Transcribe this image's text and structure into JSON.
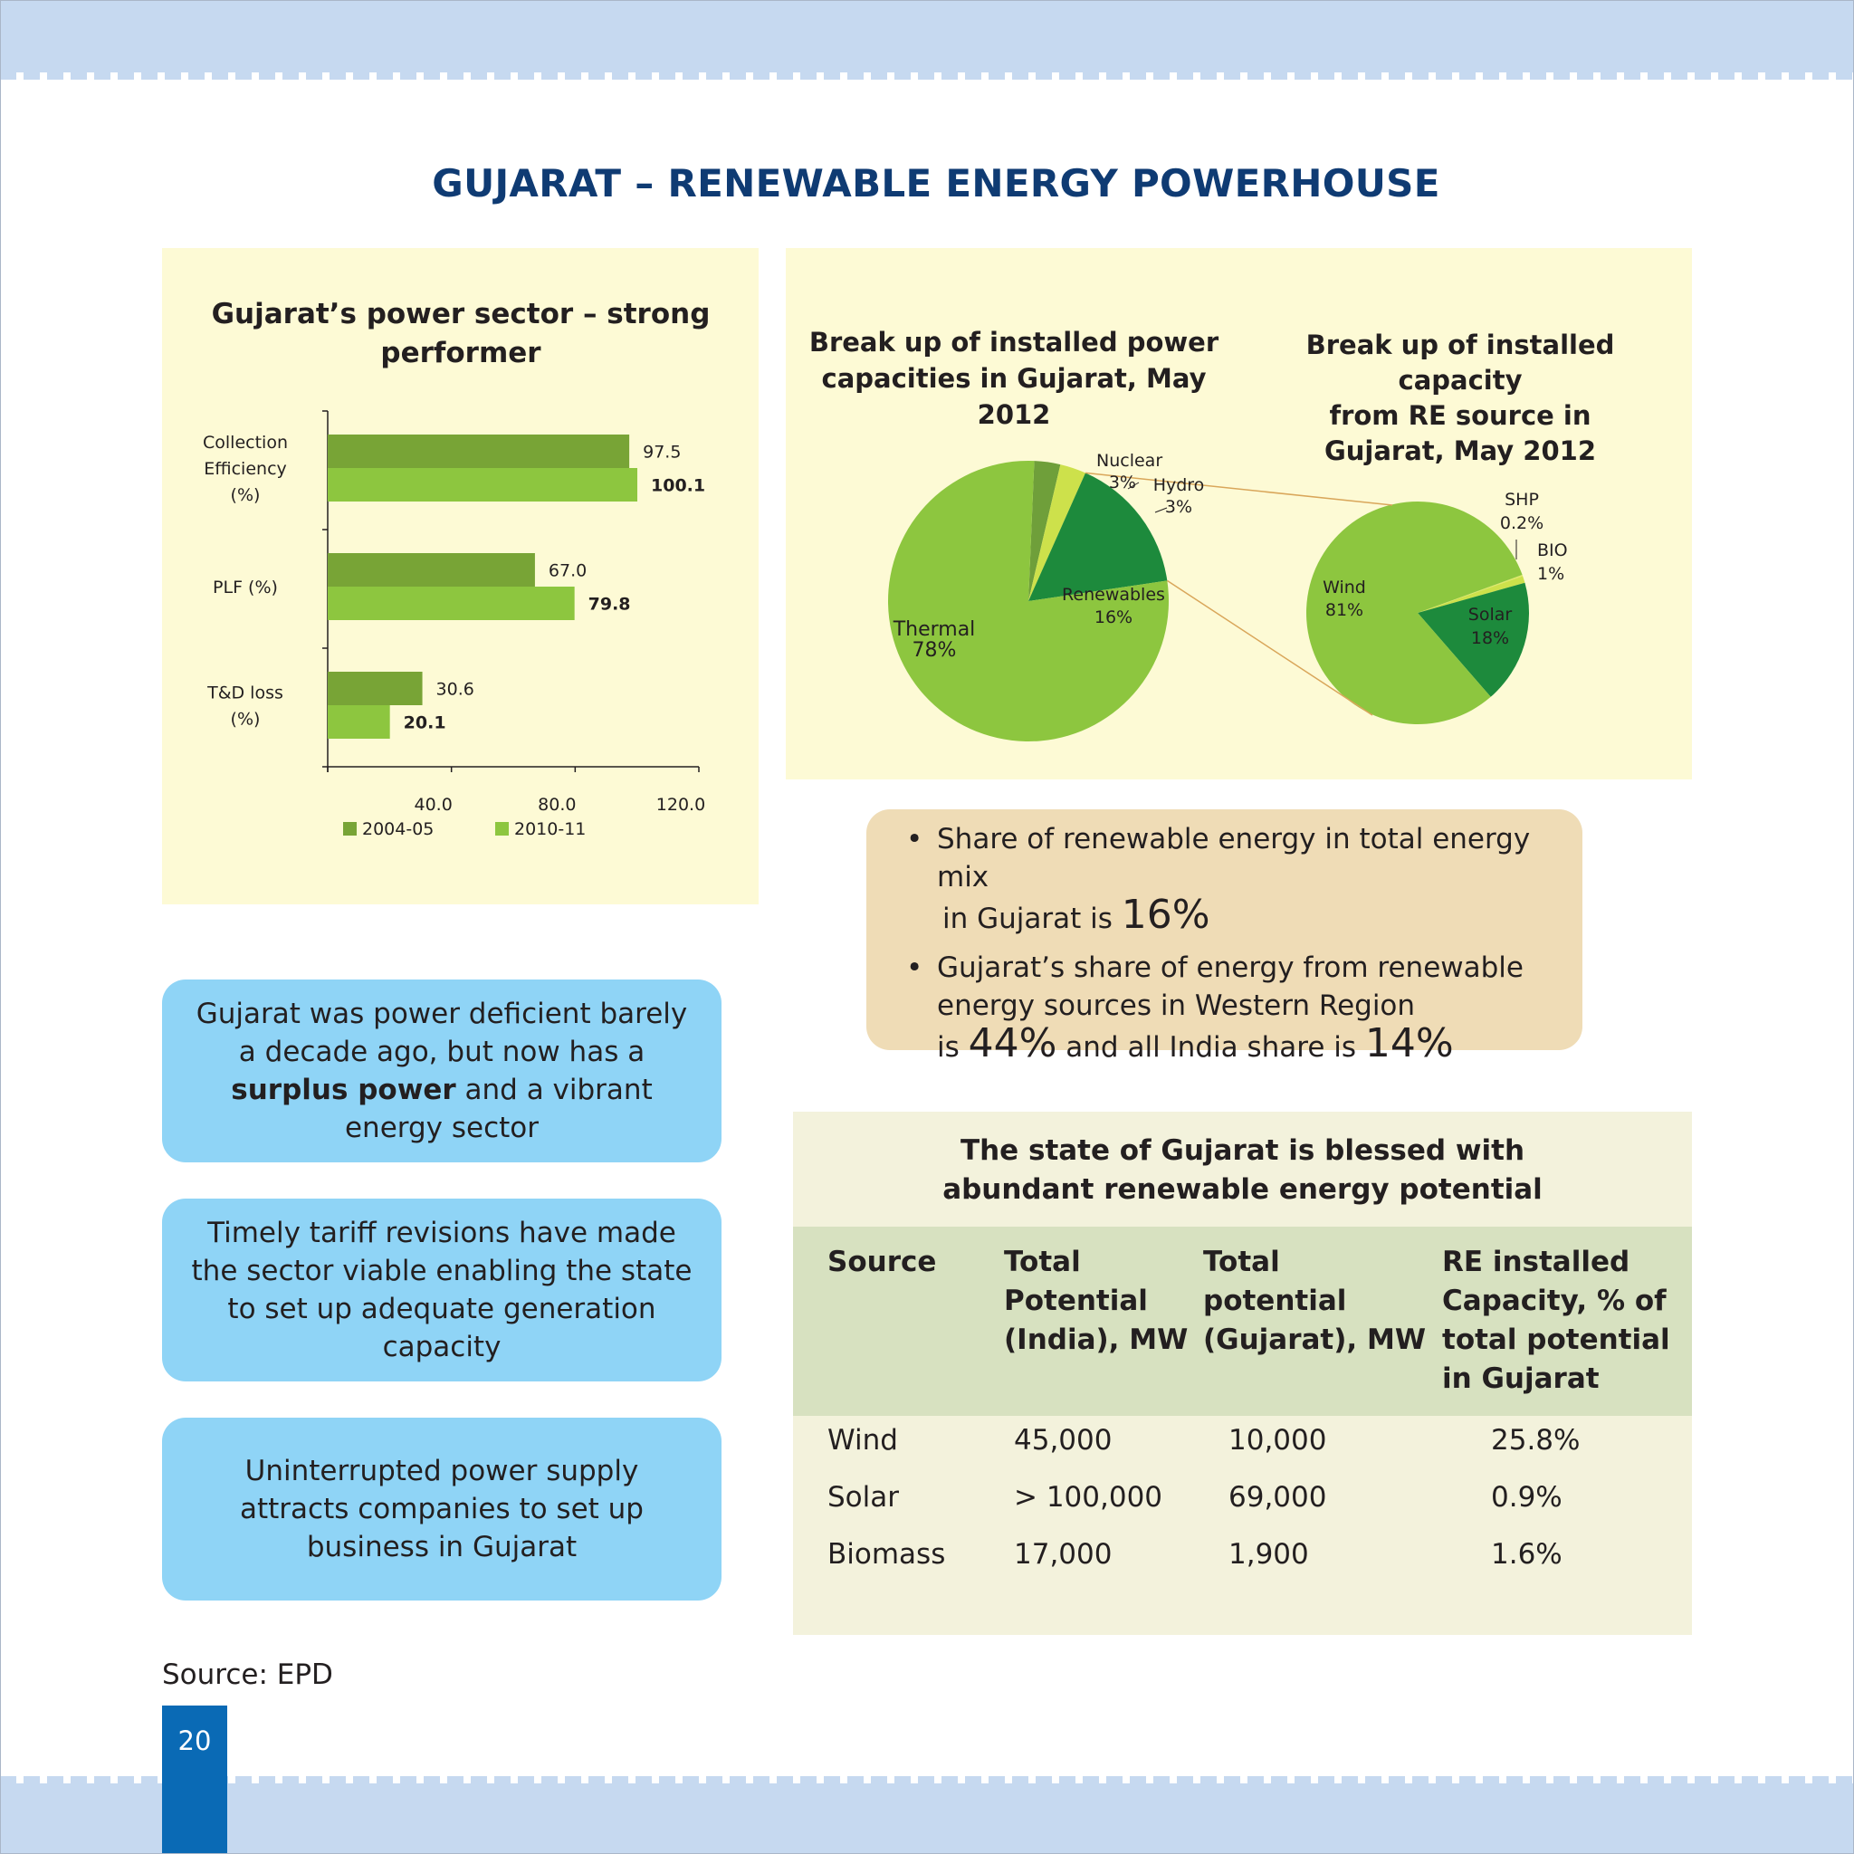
{
  "page": {
    "title": "GUJARAT – RENEWABLE ENERGY POWERHOUSE",
    "source": "Source: EPD",
    "page_number": "20"
  },
  "colors": {
    "band": "#c6d9f0",
    "title": "#0f3b73",
    "panel": "#fdfad5",
    "bar_2004": "#78a436",
    "bar_2010": "#8dc63f",
    "thermal": "#8dc63f",
    "nuclear": "#6f9f3a",
    "hydro": "#cde14b",
    "renewables": "#1d8a3c",
    "wind": "#8dc63f",
    "solar": "#1d8a3c",
    "shp": "#dfe86a",
    "bio": "#cde14b",
    "pill": "#efdcb6",
    "blue_box": "#8fd4f6",
    "page_tab": "#0a6ab5"
  },
  "chart_data": [
    {
      "type": "bar",
      "orientation": "horizontal",
      "title": "Gujarat’s power sector – strong performer",
      "categories": [
        "Collection Efficiency (%)",
        "PLF (%)",
        "T&D loss (%)"
      ],
      "category_lines": [
        [
          "Collection",
          "Efficiency",
          "(%)"
        ],
        [
          "PLF (%)"
        ],
        [
          "T&D loss",
          "(%)"
        ]
      ],
      "series": [
        {
          "name": "2004-05",
          "values": [
            97.5,
            67.0,
            30.6
          ],
          "labels": [
            "97.5",
            "67.0",
            "30.6"
          ]
        },
        {
          "name": "2010-11",
          "values": [
            100.1,
            79.8,
            20.1
          ],
          "labels": [
            "100.1",
            "79.8",
            "20.1"
          ]
        }
      ],
      "xlim": [
        0,
        120
      ],
      "xticks": [
        0,
        40,
        80,
        120
      ],
      "xtick_labels": [
        "40.0",
        "80.0",
        "120.0"
      ],
      "legend": "bottom",
      "grid": false
    },
    {
      "type": "pie",
      "title": "Break up of installed power capacities in Gujarat, May 2012",
      "slices": [
        {
          "label": "Thermal",
          "pct_label": "78%",
          "value": 78
        },
        {
          "label": "Nuclear",
          "pct_label": "3%",
          "value": 3
        },
        {
          "label": "Hydro",
          "pct_label": "3%",
          "value": 3
        },
        {
          "label": "Renewables",
          "pct_label": "16%",
          "value": 16
        }
      ]
    },
    {
      "type": "pie",
      "title": "Break up of installed capacity from RE source in Gujarat, May 2012",
      "slices": [
        {
          "label": "Wind",
          "pct_label": "81%",
          "value": 81
        },
        {
          "label": "Solar",
          "pct_label": "18%",
          "value": 18
        },
        {
          "label": "SHP",
          "pct_label": "0.2%",
          "value": 0.2
        },
        {
          "label": "BIO",
          "pct_label": "1%",
          "value": 1
        }
      ]
    }
  ],
  "bar_chart_titles": {
    "line1": "Gujarat’s power sector – strong",
    "line2": "performer"
  },
  "pie_titles": {
    "left_line1": "Break up of installed power",
    "left_line2": "capacities in Gujarat, May 2012",
    "right_line1": "Break up of installed capacity",
    "right_line2": "from RE source in",
    "right_line3": "Gujarat, May 2012"
  },
  "highlights": {
    "bullet_symbol": "•",
    "item1_text": "Share of renewable energy in total energy mix",
    "item1_text2": "in Gujarat is",
    "item1_value": "16%",
    "item2_line1": "Gujarat’s share of energy from renewable",
    "item2_line2": "energy sources  in Western Region",
    "item2_prefix": "is",
    "item2_value1": "44%",
    "item2_mid": "and all India share is",
    "item2_value2": "14%"
  },
  "boxes": {
    "box1_pre": "Gujarat was power deficient barely a decade ago, but now has a",
    "box1_bold": "surplus power",
    "box1_post": "and a vibrant energy sector",
    "box2": "Timely tariff revisions have made the sector viable enabling the state to set up adequate generation capacity",
    "box3": "Uninterrupted power supply attracts companies to set up business in Gujarat"
  },
  "potential_table": {
    "title_line1": "The state of Gujarat is blessed with",
    "title_line2": "abundant renewable energy potential",
    "headers": [
      [
        "Source"
      ],
      [
        "Total",
        "Potential",
        "(India), MW"
      ],
      [
        "Total",
        "potential",
        "(Gujarat), MW"
      ],
      [
        "RE installed",
        "Capacity, % of",
        "total potential",
        "in Gujarat"
      ]
    ],
    "rows": [
      [
        "Wind",
        "45,000",
        "10,000",
        "25.8%"
      ],
      [
        "Solar",
        "> 100,000",
        "69,000",
        "0.9%"
      ],
      [
        "Biomass",
        "17,000",
        "1,900",
        "1.6%"
      ]
    ]
  }
}
